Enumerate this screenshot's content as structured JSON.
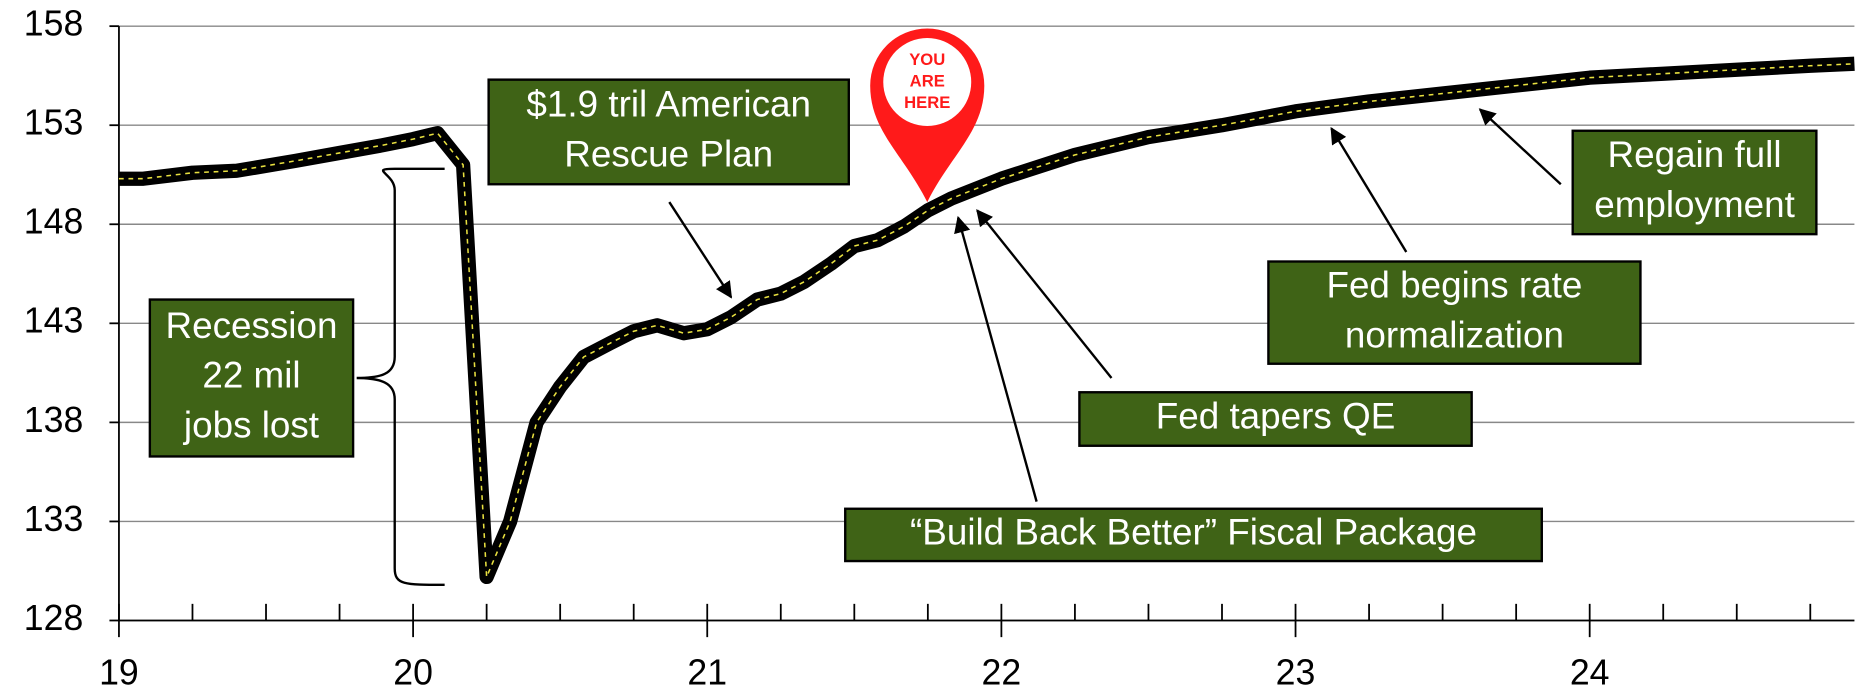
{
  "chart_data": {
    "type": "line",
    "x": [
      19.0,
      19.083,
      19.25,
      19.4,
      19.6,
      19.75,
      19.9,
      20.0,
      20.083,
      20.17,
      20.25,
      20.33,
      20.42,
      20.5,
      20.58,
      20.67,
      20.75,
      20.83,
      20.92,
      21.0,
      21.08,
      21.17,
      21.25,
      21.33,
      21.42,
      21.5,
      21.58,
      21.67,
      21.75,
      21.83,
      22.0,
      22.25,
      22.5,
      22.75,
      23.0,
      23.25,
      23.5,
      23.75,
      24.0,
      24.25,
      24.5,
      24.75,
      24.9
    ],
    "series": [
      {
        "color": "#000000",
        "values": [
          150.3,
          150.3,
          150.6,
          150.7,
          151.2,
          151.6,
          152.0,
          152.3,
          152.6,
          151.0,
          130.2,
          133.0,
          138.0,
          139.8,
          141.3,
          142.0,
          142.6,
          142.9,
          142.5,
          142.7,
          143.3,
          144.2,
          144.5,
          145.1,
          146.0,
          146.9,
          147.2,
          147.9,
          148.7,
          149.3,
          150.3,
          151.5,
          152.4,
          153.0,
          153.7,
          154.2,
          154.6,
          155.0,
          155.4,
          155.6,
          155.8,
          156.0,
          156.1
        ]
      }
    ],
    "xlim": [
      19,
      24.9
    ],
    "xticks": [
      19,
      20,
      21,
      22,
      23,
      24
    ],
    "xminorticks": [
      19.25,
      19.5,
      19.75,
      20.25,
      20.5,
      20.75,
      21.25,
      21.5,
      21.75,
      22.25,
      22.5,
      22.75,
      23.25,
      23.5,
      23.75,
      24.25,
      24.5,
      24.75
    ],
    "ylim": [
      128,
      158
    ],
    "yticks": [
      128,
      133,
      138,
      143,
      148,
      153,
      158
    ],
    "grid": true,
    "annotations": [
      {
        "lines": [
          "Recession",
          "22 mil",
          "jobs lost"
        ]
      },
      {
        "lines": [
          "$1.9 tril American",
          "Rescue Plan"
        ]
      },
      {
        "lines": [
          "Regain full",
          "employment"
        ]
      },
      {
        "lines": [
          "Fed begins rate",
          "normalization"
        ]
      },
      {
        "lines": [
          "Fed tapers QE"
        ]
      },
      {
        "lines": [
          "“Build Back Better” Fiscal Package"
        ]
      }
    ],
    "marker": {
      "lines": [
        "YOU",
        "ARE",
        "HERE"
      ]
    }
  }
}
